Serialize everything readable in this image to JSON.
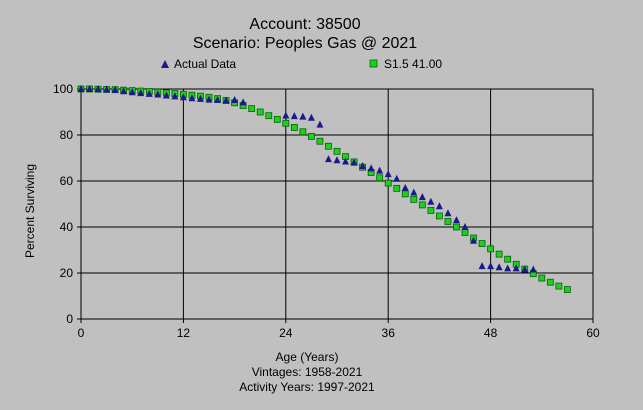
{
  "chart_data": {
    "type": "scatter",
    "title": "Account: 38500",
    "subtitle": "Scenario: Peoples Gas @ 2021",
    "xlabel": "Age (Years)",
    "ylabel": "Percent Surviving",
    "footer_lines": [
      "Vintages: 1958-2021",
      "Activity Years: 1997-2021"
    ],
    "xlim": [
      0,
      60
    ],
    "ylim": [
      0,
      100
    ],
    "x_ticks": [
      0,
      12,
      24,
      36,
      48,
      60
    ],
    "y_ticks": [
      0,
      20,
      40,
      60,
      80,
      100
    ],
    "grid": true,
    "legend_placement": "top",
    "colors": {
      "background": "#c0c0c0",
      "actual": "#1a1a8c",
      "curve": "#22cc22",
      "curve_edge": "#006600",
      "grid": "#000000"
    },
    "series": [
      {
        "name": "Actual Data",
        "marker": "triangle",
        "points": [
          [
            0,
            100
          ],
          [
            1,
            100
          ],
          [
            2,
            100
          ],
          [
            3,
            99.8
          ],
          [
            4,
            99.6
          ],
          [
            5,
            99
          ],
          [
            6,
            98.6
          ],
          [
            7,
            98.2
          ],
          [
            8,
            97.9
          ],
          [
            9,
            97.6
          ],
          [
            10,
            97.2
          ],
          [
            11,
            96.8
          ],
          [
            12,
            96.4
          ],
          [
            13,
            96
          ],
          [
            14,
            95.7
          ],
          [
            15,
            95.4
          ],
          [
            16,
            95.2
          ],
          [
            17,
            95
          ],
          [
            18,
            95.2
          ],
          [
            19,
            94.2
          ],
          [
            24,
            88.5
          ],
          [
            25,
            88.2
          ],
          [
            26,
            88
          ],
          [
            27,
            87.5
          ],
          [
            28,
            84.5
          ],
          [
            29,
            69.5
          ],
          [
            30,
            69
          ],
          [
            31,
            68.5
          ],
          [
            32,
            68
          ],
          [
            33,
            66.5
          ],
          [
            34,
            65.5
          ],
          [
            35,
            64.5
          ],
          [
            36,
            63
          ],
          [
            37,
            61
          ],
          [
            38,
            57
          ],
          [
            39,
            55
          ],
          [
            40,
            53
          ],
          [
            41,
            51
          ],
          [
            42,
            49
          ],
          [
            43,
            46
          ],
          [
            44,
            43
          ],
          [
            45,
            40
          ],
          [
            46,
            34
          ],
          [
            47,
            23
          ],
          [
            48,
            23
          ],
          [
            49,
            22.5
          ],
          [
            50,
            22
          ],
          [
            51,
            22
          ],
          [
            52,
            21.5
          ],
          [
            53,
            21.5
          ]
        ]
      },
      {
        "name": "S1.5 41.00",
        "marker": "square",
        "points": [
          [
            0,
            100
          ],
          [
            1,
            100
          ],
          [
            2,
            99.9
          ],
          [
            3,
            99.8
          ],
          [
            4,
            99.7
          ],
          [
            5,
            99.5
          ],
          [
            6,
            99.3
          ],
          [
            7,
            99.1
          ],
          [
            8,
            98.9
          ],
          [
            9,
            98.6
          ],
          [
            10,
            98.3
          ],
          [
            11,
            98
          ],
          [
            12,
            97.7
          ],
          [
            13,
            97.3
          ],
          [
            14,
            96.9
          ],
          [
            15,
            96.4
          ],
          [
            16,
            95.8
          ],
          [
            17,
            95
          ],
          [
            18,
            94
          ],
          [
            19,
            92.8
          ],
          [
            20,
            91.5
          ],
          [
            21,
            90
          ],
          [
            22,
            88.4
          ],
          [
            23,
            86.8
          ],
          [
            24,
            85.1
          ],
          [
            25,
            83.3
          ],
          [
            26,
            81.4
          ],
          [
            27,
            79.4
          ],
          [
            28,
            77.3
          ],
          [
            29,
            75.1
          ],
          [
            30,
            72.9
          ],
          [
            31,
            70.6
          ],
          [
            32,
            68.3
          ],
          [
            33,
            66
          ],
          [
            34,
            63.7
          ],
          [
            35,
            61.4
          ],
          [
            36,
            59.1
          ],
          [
            37,
            56.8
          ],
          [
            38,
            54.4
          ],
          [
            39,
            52
          ],
          [
            40,
            49.6
          ],
          [
            41,
            47.2
          ],
          [
            42,
            44.8
          ],
          [
            43,
            42.4
          ],
          [
            44,
            40
          ],
          [
            45,
            37.6
          ],
          [
            46,
            35.2
          ],
          [
            47,
            32.8
          ],
          [
            48,
            30.5
          ],
          [
            49,
            28.2
          ],
          [
            50,
            26
          ],
          [
            51,
            23.8
          ],
          [
            52,
            21.7
          ],
          [
            53,
            19.7
          ],
          [
            54,
            17.8
          ],
          [
            55,
            16
          ],
          [
            56,
            14.3
          ],
          [
            57,
            12.8
          ]
        ]
      }
    ]
  }
}
